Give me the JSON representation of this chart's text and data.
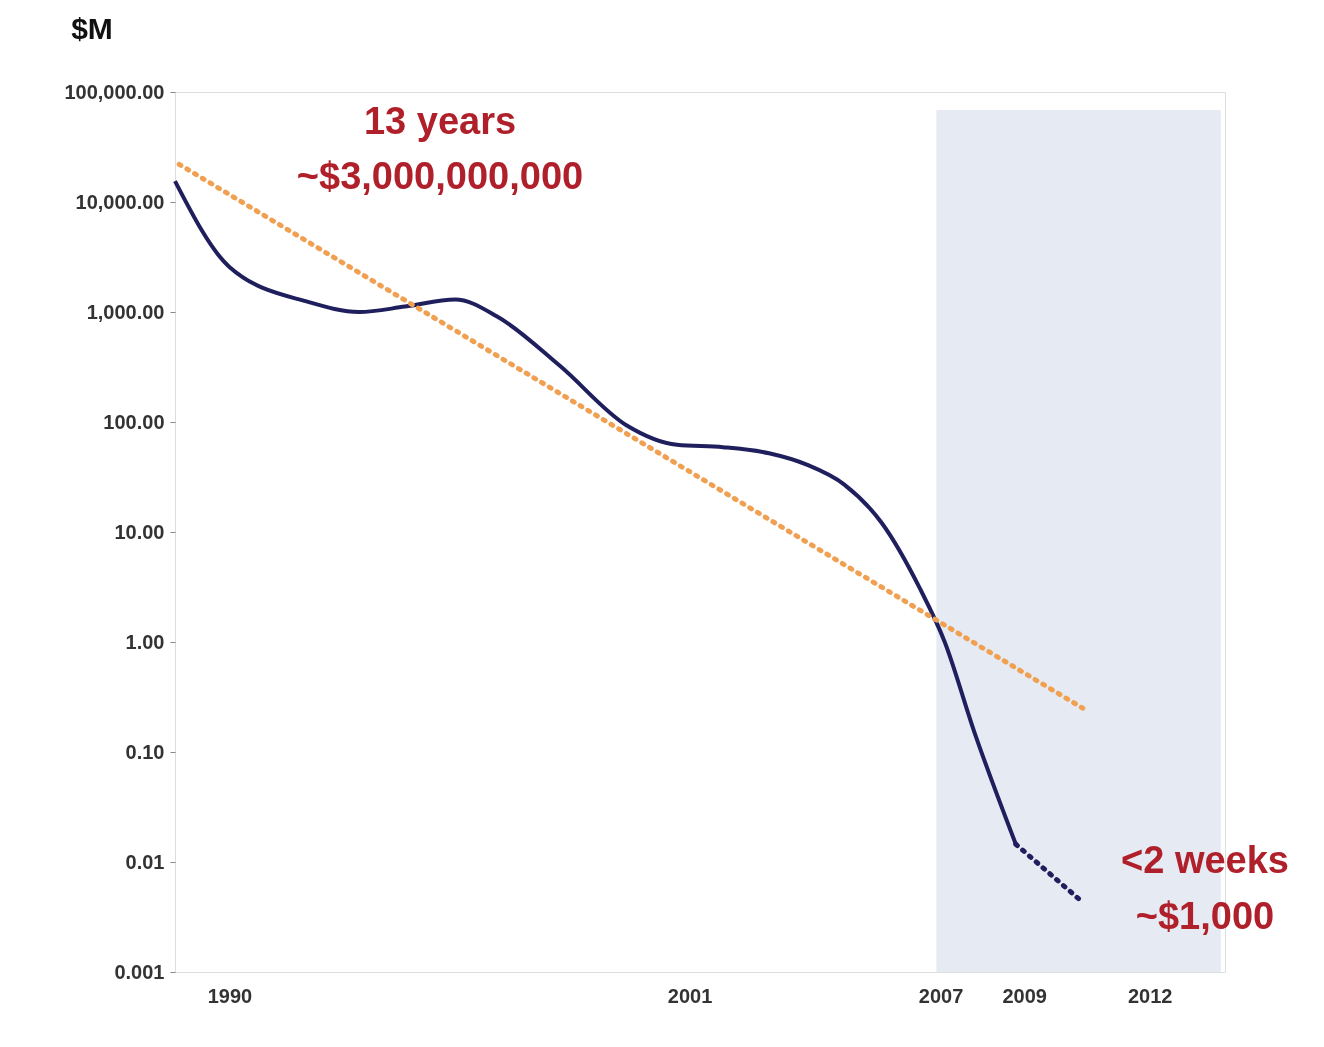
{
  "chart_data": {
    "type": "line",
    "line_style": "solid",
    "ylabel": "$M",
    "annotations": [
      "13 years",
      "~$3,000,000,000",
      "<2 weeks",
      "~$1,000"
    ],
    "xlim": [
      1988.7,
      2013.8
    ],
    "xticks": [
      1990,
      2001,
      2007,
      2009,
      2012
    ],
    "ylim": [
      0.001,
      100000
    ],
    "log": true,
    "yticks": [
      0.001,
      0.01,
      {
        "value": 0.1,
        "label": "0.10"
      },
      {
        "value": 1,
        "label": "1.00"
      },
      {
        "value": 10,
        "label": "10.00"
      },
      {
        "value": 100,
        "label": "100.00"
      },
      {
        "value": 1000,
        "label": "1,000.00"
      },
      {
        "value": 10000,
        "label": "10,000.00"
      },
      {
        "value": 100000,
        "label": "100,000.00"
      }
    ],
    "grid": false,
    "bands": [
      {
        "axis": "x",
        "from": 2006.9,
        "to": 2013.7,
        "color": "#e6ebf3"
      }
    ],
    "series": [
      {
        "color": "#1f1f5e",
        "x": [
          1988.7,
          1990.0,
          1991.9,
          1993.1,
          1994.2,
          1995.4,
          1996.4,
          1997.9,
          1999.5,
          2000.7,
          2001.8,
          2002.9,
          2003.8,
          2004.7,
          2005.6,
          2006.5,
          2007.1,
          2007.8,
          2008.8
        ],
        "values": [
          15500,
          2570,
          1230,
          1000,
          1120,
          1300,
          910,
          324,
          93,
          62,
          59,
          52,
          41,
          27,
          12,
          3.1,
          1.0,
          0.155,
          0.0145
        ]
      },
      {
        "line_style": "dotted",
        "color": "#1f1f5e",
        "x": [
          2008.8,
          2010.4
        ],
        "values": [
          0.0145,
          0.0043
        ]
      },
      {
        "line_style": "dotted",
        "color": "#f0a050",
        "x": [
          1988.8,
          2010.4
        ],
        "values": [
          22000,
          0.25
        ]
      }
    ]
  }
}
